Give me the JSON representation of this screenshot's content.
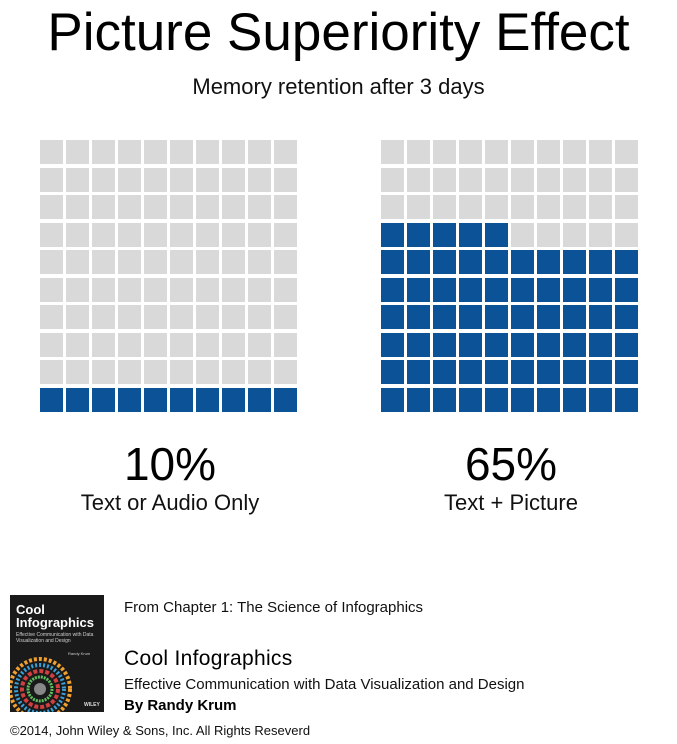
{
  "title": "Picture Superiority Effect",
  "subtitle": "Memory retention after 3 days",
  "colors": {
    "filled": "#0b5396",
    "empty": "#d9d9d9",
    "background": "#ffffff"
  },
  "chart_data": {
    "type": "waffle",
    "title": "Picture Superiority Effect",
    "subtitle": "Memory retention after 3 days",
    "grid": {
      "rows": 10,
      "cols": 10
    },
    "series": [
      {
        "name": "Text or Audio Only",
        "value_label": "10%",
        "value": 10
      },
      {
        "name": "Text + Picture",
        "value_label": "65%",
        "value": 65
      }
    ]
  },
  "footer": {
    "chapter": "From Chapter 1: The Science of Infographics",
    "book_title": "Cool Infographics",
    "book_subtitle": "Effective Communication with Data Visualization and Design",
    "author": "By Randy Krum",
    "copyright": "©2014, John Wiley & Sons, Inc. All Rights Reseverd",
    "cover": {
      "title_line1": "Cool",
      "title_line2": "Infographics",
      "subtitle": "Effective Communication with Data Visualization and Design",
      "author": "Randy Krum",
      "publisher": "WILEY"
    }
  }
}
